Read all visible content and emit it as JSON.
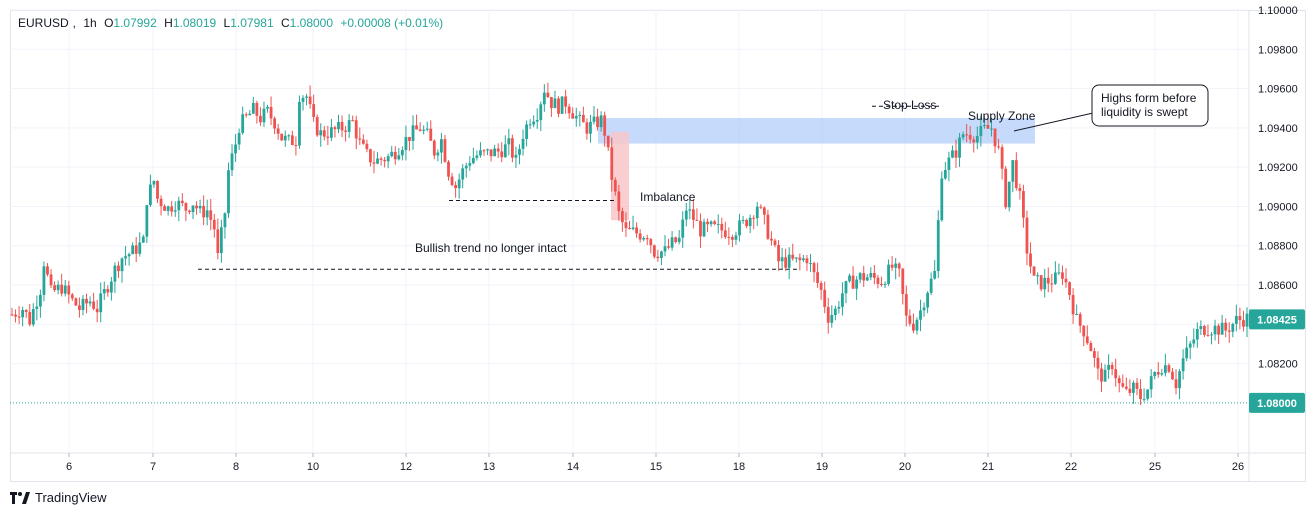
{
  "legend": {
    "symbol": "EURUSD",
    "interval": "1h",
    "open_label": "O",
    "open": "1.07992",
    "high_label": "H",
    "high": "1.08019",
    "low_label": "L",
    "low": "1.07981",
    "close_label": "C",
    "close": "1.08000",
    "change": "+0.00008 (+0.01%)"
  },
  "brand": {
    "name": "TradingView",
    "logo_icon": "tradingview-logo-icon"
  },
  "colors": {
    "up": "#26a69a",
    "down": "#ef5350",
    "grid": "#f0f3fa",
    "supply_zone": "#b3cdfb",
    "imbalance": "#f7c6c9",
    "last_price_badge": "#26a69a",
    "axis_text": "#131722"
  },
  "chart_data": {
    "type": "candlestick",
    "symbol": "EURUSD",
    "interval": "1h",
    "y_axis": {
      "range": [
        1.0775,
        1.1
      ],
      "ticks": [
        "1.10000",
        "1.09800",
        "1.09600",
        "1.09400",
        "1.09200",
        "1.09000",
        "1.08800",
        "1.08600",
        "1.08400",
        "1.08200"
      ],
      "tick_values": [
        1.1,
        1.098,
        1.096,
        1.094,
        1.092,
        1.09,
        1.088,
        1.086,
        1.084,
        1.082
      ]
    },
    "x_axis": {
      "ticks": [
        "6",
        "7",
        "8",
        "10",
        "12",
        "13",
        "14",
        "15",
        "18",
        "19",
        "20",
        "21",
        "22",
        "25",
        "26"
      ]
    },
    "price_labels": [
      {
        "label": "1.08425",
        "value": 1.08425
      },
      {
        "label": "1.08000",
        "value": 1.08
      }
    ],
    "price_path": [
      [
        0,
        1.0845
      ],
      [
        3,
        1.0848
      ],
      [
        5,
        1.0842
      ],
      [
        8,
        1.0858
      ],
      [
        9,
        1.0872
      ],
      [
        11,
        1.0856
      ],
      [
        14,
        1.0859
      ],
      [
        17,
        1.0852
      ],
      [
        19,
        1.0848
      ],
      [
        22,
        1.0852
      ],
      [
        24,
        1.0848
      ],
      [
        27,
        1.086
      ],
      [
        29,
        1.0868
      ],
      [
        31,
        1.0874
      ],
      [
        34,
        1.0877
      ],
      [
        37,
        1.0882
      ],
      [
        38,
        1.0904
      ],
      [
        40,
        1.0913
      ],
      [
        41,
        1.0904
      ],
      [
        44,
        1.0899
      ],
      [
        46,
        1.0902
      ],
      [
        49,
        1.0899
      ],
      [
        51,
        1.0902
      ],
      [
        53,
        1.0897
      ],
      [
        55,
        1.0898
      ],
      [
        57,
        1.0889
      ],
      [
        58,
        1.0874
      ],
      [
        60,
        1.0897
      ],
      [
        61,
        1.0918
      ],
      [
        63,
        1.0932
      ],
      [
        64,
        1.0941
      ],
      [
        66,
        1.0945
      ],
      [
        68,
        1.0949
      ],
      [
        70,
        1.0945
      ],
      [
        72,
        1.0948
      ],
      [
        74,
        1.0943
      ],
      [
        76,
        1.0935
      ],
      [
        78,
        1.0933
      ],
      [
        80,
        1.0934
      ],
      [
        81,
        1.0957
      ],
      [
        83,
        1.0956
      ],
      [
        85,
        1.0942
      ],
      [
        87,
        1.0937
      ],
      [
        90,
        1.0938
      ],
      [
        93,
        1.094
      ],
      [
        96,
        1.0943
      ],
      [
        98,
        1.0932
      ],
      [
        100,
        1.0926
      ],
      [
        102,
        1.0923
      ],
      [
        104,
        1.0924
      ],
      [
        106,
        1.0925
      ],
      [
        108,
        1.0928
      ],
      [
        110,
        1.0932
      ],
      [
        112,
        1.0936
      ],
      [
        115,
        1.094
      ],
      [
        117,
        1.0936
      ],
      [
        119,
        1.0928
      ],
      [
        121,
        1.0934
      ],
      [
        123,
        1.0918
      ],
      [
        125,
        1.091
      ],
      [
        127,
        1.0918
      ],
      [
        129,
        1.0924
      ],
      [
        131,
        1.0926
      ],
      [
        134,
        1.0927
      ],
      [
        137,
        1.0928
      ],
      [
        140,
        1.0931
      ],
      [
        142,
        1.0923
      ],
      [
        144,
        1.0937
      ],
      [
        146,
        1.0945
      ],
      [
        148,
        1.0948
      ],
      [
        150,
        1.096
      ],
      [
        152,
        1.0953
      ],
      [
        154,
        1.0951
      ],
      [
        156,
        1.0953
      ],
      [
        158,
        1.0948
      ],
      [
        160,
        1.0943
      ],
      [
        162,
        1.094
      ],
      [
        164,
        1.0942
      ],
      [
        166,
        1.0944
      ],
      [
        167,
        1.0938
      ],
      [
        169,
        1.0915
      ],
      [
        171,
        1.0896
      ],
      [
        173,
        1.0887
      ],
      [
        175,
        1.0887
      ],
      [
        177,
        1.0886
      ],
      [
        179,
        1.0886
      ],
      [
        181,
        1.0877
      ],
      [
        184,
        1.0877
      ],
      [
        186,
        1.0881
      ],
      [
        188,
        1.0883
      ],
      [
        190,
        1.0899
      ],
      [
        192,
        1.0894
      ],
      [
        194,
        1.0888
      ],
      [
        197,
        1.0889
      ],
      [
        200,
        1.0888
      ],
      [
        203,
        1.0887
      ],
      [
        206,
        1.0891
      ],
      [
        208,
        1.0895
      ],
      [
        210,
        1.0901
      ],
      [
        212,
        1.0892
      ],
      [
        214,
        1.0882
      ],
      [
        216,
        1.0872
      ],
      [
        219,
        1.0872
      ],
      [
        222,
        1.0872
      ],
      [
        224,
        1.0874
      ],
      [
        226,
        1.0865
      ],
      [
        228,
        1.0857
      ],
      [
        230,
        1.0844
      ],
      [
        232,
        1.0847
      ],
      [
        234,
        1.0856
      ],
      [
        236,
        1.0861
      ],
      [
        239,
        1.0864
      ],
      [
        242,
        1.0864
      ],
      [
        245,
        1.0862
      ],
      [
        248,
        1.0869
      ],
      [
        250,
        1.0865
      ],
      [
        252,
        1.0843
      ],
      [
        254,
        1.084
      ],
      [
        256,
        1.0847
      ],
      [
        258,
        1.0858
      ],
      [
        260,
        1.0866
      ],
      [
        262,
        1.0918
      ],
      [
        264,
        1.0923
      ],
      [
        266,
        1.0928
      ],
      [
        268,
        1.0937
      ],
      [
        270,
        1.0937
      ],
      [
        272,
        1.0936
      ],
      [
        274,
        1.0939
      ],
      [
        276,
        1.094
      ],
      [
        278,
        1.0928
      ],
      [
        280,
        1.0903
      ],
      [
        282,
        1.0922
      ],
      [
        284,
        1.0904
      ],
      [
        286,
        1.0878
      ],
      [
        288,
        1.0862
      ],
      [
        290,
        1.0861
      ],
      [
        292,
        1.0862
      ],
      [
        294,
        1.0863
      ],
      [
        296,
        1.0866
      ],
      [
        298,
        1.0856
      ],
      [
        300,
        1.0842
      ],
      [
        302,
        1.0837
      ],
      [
        304,
        1.0828
      ],
      [
        306,
        1.0815
      ],
      [
        308,
        1.0813
      ],
      [
        310,
        1.082
      ],
      [
        312,
        1.0809
      ],
      [
        314,
        1.0805
      ],
      [
        316,
        1.0807
      ],
      [
        318,
        1.0803
      ],
      [
        320,
        1.0807
      ],
      [
        322,
        1.0815
      ],
      [
        324,
        1.0819
      ],
      [
        326,
        1.0819
      ],
      [
        328,
        1.081
      ],
      [
        330,
        1.0822
      ],
      [
        332,
        1.0829
      ],
      [
        334,
        1.0836
      ],
      [
        336,
        1.0838
      ],
      [
        339,
        1.0838
      ],
      [
        342,
        1.0837
      ],
      [
        345,
        1.0842
      ],
      [
        348,
        1.0843
      ]
    ],
    "annotations": [
      {
        "kind": "label",
        "text": "Stop Loss"
      },
      {
        "kind": "label",
        "text": "Supply Zone"
      },
      {
        "kind": "label",
        "text": "Imbalance"
      },
      {
        "kind": "label",
        "text": "Bullish trend no longer intact"
      },
      {
        "kind": "callout",
        "line1": "Highs form before",
        "line2": "liquidity is swept"
      }
    ],
    "zones": {
      "supply_zone_range": [
        1.0932,
        1.0945
      ],
      "imbalance_range": [
        1.0893,
        1.0938
      ],
      "stop_loss_level": 1.0951,
      "previous_lows": [
        1.0903,
        1.0868
      ]
    },
    "grid": true,
    "legend_position": "top-left"
  }
}
